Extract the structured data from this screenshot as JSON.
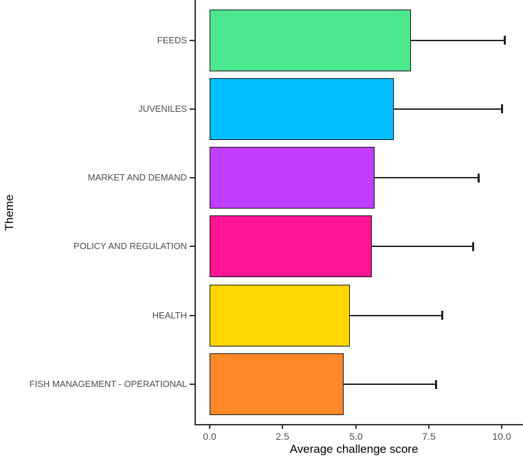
{
  "chart_data": {
    "type": "bar",
    "orientation": "horizontal",
    "title": "",
    "xlabel": "Average challenge score",
    "ylabel": "Theme",
    "categories": [
      "FEEDS",
      "JUVENILES",
      "MARKET AND DEMAND",
      "POLICY AND REGULATION",
      "HEALTH",
      "FISH MANAGEMENT - OPERATIONAL"
    ],
    "values": [
      6.9,
      6.3,
      5.65,
      5.55,
      4.8,
      4.6
    ],
    "error_upper": [
      10.1,
      10.0,
      9.2,
      9.0,
      7.95,
      7.75
    ],
    "bar_colors": [
      "#4BE88E",
      "#00BFFF",
      "#BF3EFF",
      "#FF1493",
      "#FFD700",
      "#FF8727"
    ],
    "x_tick_labels": [
      "0.0",
      "2.5",
      "5.0",
      "7.5",
      "10.0"
    ],
    "x_tick_values": [
      0,
      2.5,
      5,
      7.5,
      10
    ],
    "xlim": [
      0,
      10.75
    ],
    "grid": "off",
    "legend": "none",
    "bar_outline_color": "#111111",
    "errorbar_color": "#222222",
    "axis_line_color": "#333333",
    "tick_label_color": "#4d4d4d",
    "axis_title_color": "#000000"
  }
}
